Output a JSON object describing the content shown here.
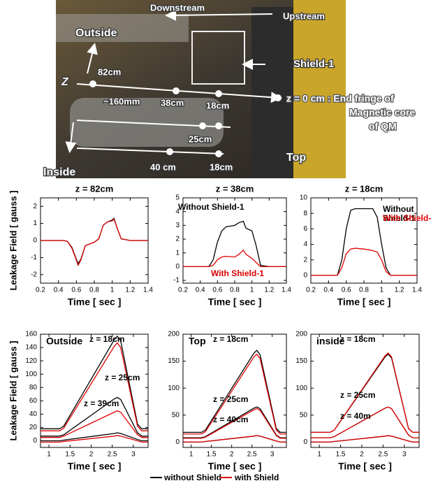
{
  "photo": {
    "labels": [
      "Downstream",
      "Upstream",
      "Outside",
      "Shield-1",
      "Z",
      "82cm",
      "~160mm",
      "38cm",
      "18cm",
      "25cm",
      "Top",
      "40 cm",
      "18cm",
      "Inside"
    ],
    "note_lines": [
      "z = 0 cm : End fringe of",
      "Magnetic core",
      "of QM"
    ]
  },
  "legend": [
    {
      "name": "without Shield",
      "color": "#000000"
    },
    {
      "name": "with Shield",
      "color": "#e00000"
    }
  ],
  "chart_data": [
    {
      "type": "line",
      "title": "z = 82cm",
      "xlabel": "Time [ sec ]",
      "ylabel": "Leakage Field [ gauss ]",
      "xlim": [
        0.2,
        1.4
      ],
      "xticks": [
        0.2,
        0.4,
        0.6,
        0.8,
        1,
        1.2,
        1.4
      ],
      "ylim": [
        -2.5,
        2.5
      ],
      "yticks": [
        -2,
        -1,
        0,
        1,
        2
      ],
      "x": [
        0.2,
        0.45,
        0.5,
        0.55,
        0.6,
        0.62,
        0.65,
        0.7,
        0.8,
        0.85,
        0.9,
        0.95,
        1.0,
        1.02,
        1.05,
        1.1,
        1.2,
        1.4
      ],
      "series": [
        {
          "color": "#000000",
          "values": [
            0,
            0,
            -0.05,
            -0.4,
            -1.1,
            -1.35,
            -1.1,
            -0.3,
            -0.1,
            0.1,
            0.9,
            1.1,
            1.2,
            1.3,
            0.8,
            0.1,
            0,
            0
          ]
        },
        {
          "color": "#e00000",
          "values": [
            0,
            0,
            -0.05,
            -0.45,
            -1.15,
            -1.45,
            -1.15,
            -0.3,
            -0.1,
            0.1,
            0.9,
            1.1,
            1.15,
            1.25,
            0.8,
            0.1,
            0,
            0
          ]
        }
      ],
      "annotations": []
    },
    {
      "type": "line",
      "title": "z = 38cm",
      "xlabel": "Time [ sec ]",
      "xlim": [
        0.2,
        1.4
      ],
      "xticks": [
        0.2,
        0.4,
        0.6,
        0.8,
        1,
        1.2,
        1.4
      ],
      "ylim": [
        -1.2,
        5
      ],
      "yticks": [
        -1,
        0,
        1,
        2,
        3,
        4,
        5
      ],
      "x": [
        0.2,
        0.5,
        0.55,
        0.6,
        0.65,
        0.7,
        0.8,
        0.85,
        0.9,
        0.93,
        1.0,
        1.05,
        1.1,
        1.2,
        1.4
      ],
      "series": [
        {
          "color": "#000000",
          "values": [
            0,
            0,
            0.5,
            1.8,
            2.6,
            2.9,
            3.0,
            3.2,
            3.3,
            2.8,
            2.6,
            1.5,
            0.1,
            0,
            0
          ]
        },
        {
          "color": "#e00000",
          "values": [
            0,
            0,
            0.1,
            0.5,
            0.7,
            0.75,
            0.7,
            0.9,
            1.2,
            0.9,
            0.6,
            0.3,
            0,
            0,
            0
          ]
        }
      ],
      "annotations": [
        {
          "lines": [
            "Without Shield-1"
          ],
          "color": "#000000"
        },
        {
          "lines": [
            "With Shield-1"
          ],
          "color": "#e00000"
        }
      ]
    },
    {
      "type": "line",
      "title": "z = 18cm",
      "xlabel": "Time [ sec ]",
      "xlim": [
        0.2,
        1.4
      ],
      "xticks": [
        0.2,
        0.4,
        0.6,
        0.8,
        1,
        1.2,
        1.4
      ],
      "ylim": [
        -1,
        10
      ],
      "yticks": [
        0,
        2,
        4,
        6,
        8,
        10
      ],
      "x": [
        0.2,
        0.5,
        0.55,
        0.6,
        0.65,
        0.7,
        0.8,
        0.9,
        0.95,
        1.0,
        1.05,
        1.1,
        1.2,
        1.4
      ],
      "series": [
        {
          "color": "#000000",
          "values": [
            0,
            0,
            2,
            6,
            8.4,
            8.6,
            8.6,
            8.6,
            7.5,
            4,
            1,
            0,
            0,
            0
          ]
        },
        {
          "color": "#e00000",
          "values": [
            0,
            0,
            1,
            2.8,
            3.4,
            3.5,
            3.4,
            3.2,
            3.0,
            2,
            0.5,
            0,
            0,
            0
          ]
        }
      ],
      "annotations": [
        {
          "lines": [
            "Without",
            "Shield-1"
          ],
          "color": "#000000"
        },
        {
          "lines": [
            "With Shield-1"
          ],
          "color": "#e00000"
        }
      ]
    },
    {
      "type": "line",
      "label": "Outside",
      "xlabel": "Time [ sec ]",
      "ylabel": "Leakage Field [ gauss ]",
      "xlim": [
        0.8,
        3.35
      ],
      "xticks": [
        1,
        1.5,
        2,
        2.5,
        3
      ],
      "ylim": [
        -10,
        160
      ],
      "yticks": [
        0,
        20,
        40,
        60,
        80,
        100,
        120,
        140,
        160
      ],
      "x": [
        0.8,
        1.25,
        1.35,
        2.55,
        2.62,
        2.7,
        3.1,
        3.2,
        3.35
      ],
      "series": [
        {
          "color": "#000000",
          "values": [
            18,
            18,
            22,
            152,
            157,
            150,
            25,
            18,
            18
          ]
        },
        {
          "color": "#e00000",
          "values": [
            15,
            15,
            19,
            142,
            147,
            140,
            22,
            15,
            15
          ]
        },
        {
          "color": "#000000",
          "values": [
            7,
            7,
            9,
            63,
            65,
            62,
            12,
            7,
            7
          ]
        },
        {
          "color": "#e00000",
          "values": [
            5,
            5,
            7,
            43,
            45,
            43,
            9,
            5,
            5
          ]
        },
        {
          "color": "#000000",
          "values": [
            0,
            0,
            1,
            11,
            12,
            11,
            2,
            0,
            0
          ]
        },
        {
          "color": "#e00000",
          "values": [
            -2,
            -2,
            -1,
            7,
            8,
            7,
            0,
            -2,
            -2
          ]
        }
      ],
      "annotations": [
        {
          "lines": [
            "z = 18cm"
          ],
          "color": "#000000"
        },
        {
          "lines": [
            "z = 25cm"
          ],
          "color": "#000000"
        },
        {
          "lines": [
            "z = 39cm"
          ],
          "color": "#000000"
        }
      ]
    },
    {
      "type": "line",
      "label": "Top",
      "xlabel": "Time [ sec ]",
      "xlim": [
        0.8,
        3.35
      ],
      "xticks": [
        1,
        1.5,
        2,
        2.5,
        3
      ],
      "ylim": [
        -10,
        200
      ],
      "yticks": [
        0,
        50,
        100,
        150,
        200
      ],
      "x": [
        0.8,
        1.25,
        1.35,
        2.55,
        2.62,
        2.7,
        3.1,
        3.2,
        3.35
      ],
      "series": [
        {
          "color": "#000000",
          "values": [
            18,
            18,
            22,
            165,
            170,
            162,
            25,
            18,
            18
          ]
        },
        {
          "color": "#e00000",
          "values": [
            15,
            15,
            19,
            158,
            163,
            155,
            22,
            15,
            15
          ]
        },
        {
          "color": "#000000",
          "values": [
            8,
            8,
            10,
            63,
            65,
            62,
            13,
            8,
            8
          ]
        },
        {
          "color": "#e00000",
          "values": [
            7,
            7,
            9,
            60,
            62,
            59,
            12,
            7,
            7
          ]
        },
        {
          "color": "#000000",
          "values": [
            0,
            0,
            1,
            11,
            12,
            11,
            2,
            0,
            0
          ]
        },
        {
          "color": "#e00000",
          "values": [
            0,
            0,
            1,
            11,
            12,
            11,
            2,
            0,
            0
          ]
        }
      ],
      "annotations": [
        {
          "lines": [
            "z = 18cm"
          ],
          "color": "#000000"
        },
        {
          "lines": [
            "z = 25cm"
          ],
          "color": "#000000"
        },
        {
          "lines": [
            "z = 40cm"
          ],
          "color": "#000000"
        }
      ]
    },
    {
      "type": "line",
      "label": "inside",
      "xlabel": "Time [ sec ]",
      "xlim": [
        0.8,
        3.35
      ],
      "xticks": [
        1,
        1.5,
        2,
        2.5,
        3
      ],
      "ylim": [
        -10,
        200
      ],
      "yticks": [
        0,
        50,
        100,
        150,
        200
      ],
      "x": [
        0.8,
        1.25,
        1.35,
        2.55,
        2.62,
        2.7,
        3.1,
        3.2,
        3.35
      ],
      "series": [
        {
          "color": "#000000",
          "values": [
            18,
            18,
            22,
            158,
            163,
            156,
            25,
            18,
            18
          ]
        },
        {
          "color": "#e00000",
          "values": [
            18,
            18,
            22,
            160,
            165,
            158,
            25,
            18,
            18
          ]
        },
        {
          "color": "#000000",
          "values": [
            8,
            8,
            10,
            63,
            65,
            62,
            13,
            8,
            8
          ]
        },
        {
          "color": "#e00000",
          "values": [
            8,
            8,
            10,
            63,
            65,
            62,
            13,
            8,
            8
          ]
        },
        {
          "color": "#000000",
          "values": [
            0,
            0,
            1,
            11,
            12,
            11,
            2,
            0,
            0
          ]
        },
        {
          "color": "#e00000",
          "values": [
            0,
            0,
            1,
            11,
            12,
            11,
            2,
            0,
            0
          ]
        }
      ],
      "annotations": [
        {
          "lines": [
            "z = 18cm"
          ],
          "color": "#000000"
        },
        {
          "lines": [
            "z = 25cm"
          ],
          "color": "#000000"
        },
        {
          "lines": [
            "z = 40m"
          ],
          "color": "#000000"
        }
      ]
    }
  ]
}
